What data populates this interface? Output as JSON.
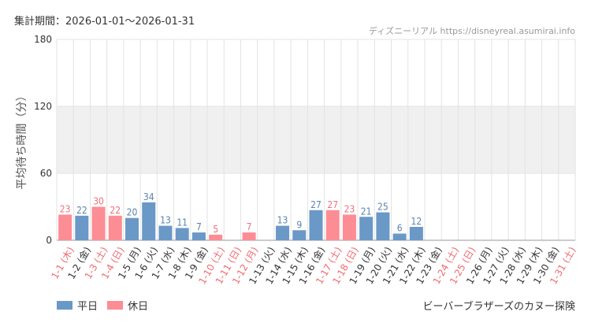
{
  "header": {
    "period": "集計期間：2026-01-01～2026-01-31",
    "site": "ディズニーリアル https://disneyreal.asumirai.info"
  },
  "colors": {
    "weekday": "#6a98c7",
    "holiday": "#fc8d95",
    "weekday_label": "#5b82b0",
    "holiday_label": "#f0707c",
    "tick_weekday": "#333333",
    "tick_holiday": "#f06c72",
    "band": "#f0f0f0",
    "grid": "#e3e3e3"
  },
  "legend": {
    "weekday": "平日",
    "holiday": "休日"
  },
  "footer": {
    "attraction": "ビーバーブラザーズのカヌー探険"
  },
  "chart_data": {
    "type": "bar",
    "ylabel": "平均待ち時間（分）",
    "ylim": [
      0,
      180
    ],
    "yticks": [
      0,
      60,
      120,
      180
    ],
    "shaded_band": [
      60,
      120
    ],
    "grid": true,
    "legend_position": "bottom-left",
    "categories": [
      "1-1 (木)",
      "1-2 (金)",
      "1-3 (土)",
      "1-4 (日)",
      "1-5 (月)",
      "1-6 (火)",
      "1-7 (水)",
      "1-8 (木)",
      "1-9 (金)",
      "1-10 (土)",
      "1-11 (日)",
      "1-12 (月)",
      "1-13 (火)",
      "1-14 (水)",
      "1-15 (木)",
      "1-16 (金)",
      "1-17 (土)",
      "1-18 (日)",
      "1-19 (月)",
      "1-20 (火)",
      "1-21 (水)",
      "1-22 (木)",
      "1-23 (金)",
      "1-24 (土)",
      "1-25 (日)",
      "1-26 (月)",
      "1-27 (火)",
      "1-28 (水)",
      "1-29 (木)",
      "1-30 (金)",
      "1-31 (土)"
    ],
    "values": [
      23,
      22,
      30,
      22,
      20,
      34,
      13,
      11,
      7,
      5,
      null,
      7,
      null,
      13,
      9,
      27,
      27,
      23,
      21,
      25,
      6,
      12,
      null,
      null,
      null,
      null,
      null,
      null,
      null,
      null,
      null
    ],
    "holiday": [
      true,
      false,
      true,
      true,
      false,
      false,
      false,
      false,
      false,
      true,
      true,
      true,
      false,
      false,
      false,
      false,
      true,
      true,
      false,
      false,
      false,
      false,
      false,
      true,
      true,
      false,
      false,
      false,
      false,
      false,
      true
    ]
  }
}
